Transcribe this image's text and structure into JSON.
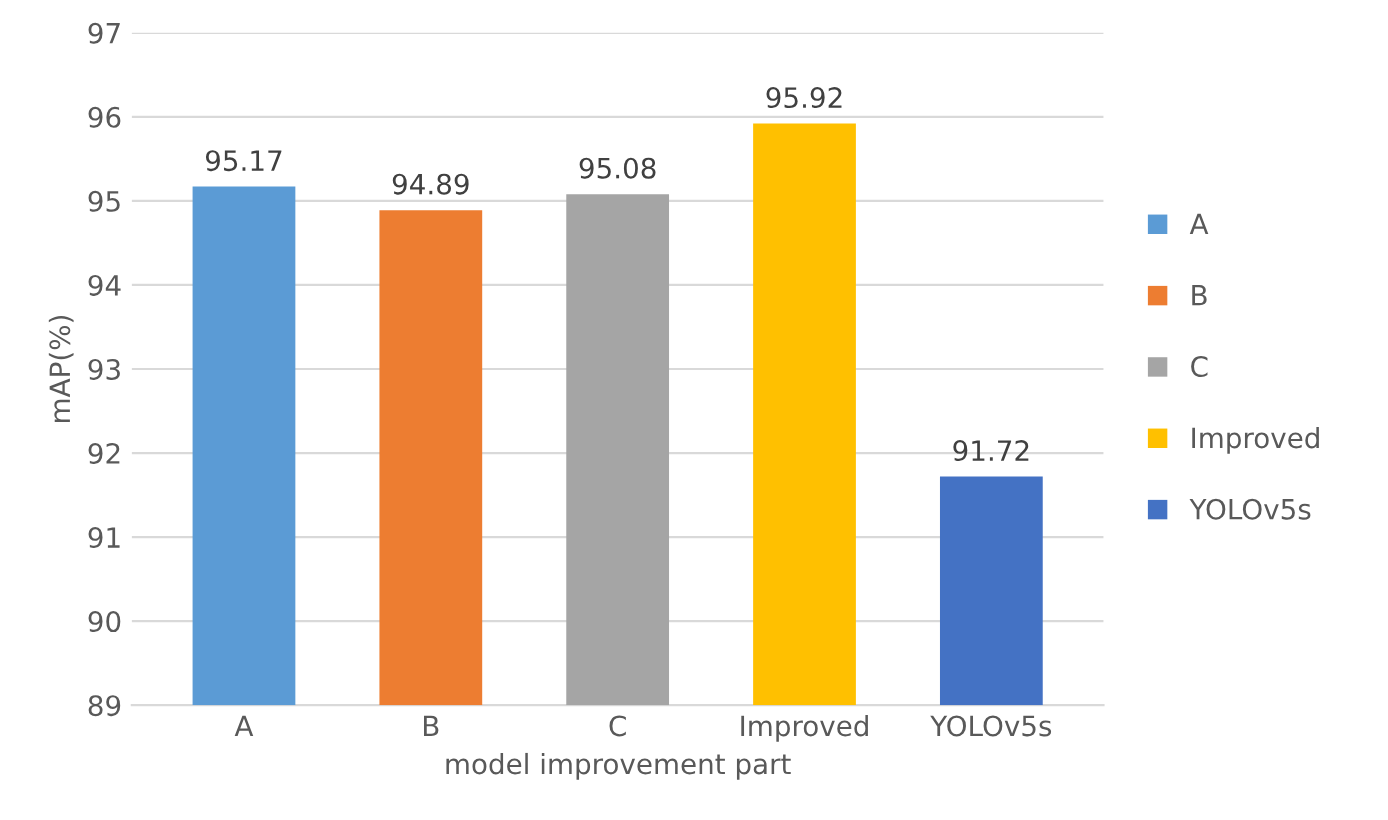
{
  "chart_data": {
    "type": "bar",
    "xlabel": "model improvement part",
    "ylabel": "mAP(%)",
    "categories": [
      "A",
      "B",
      "C",
      "Improved",
      "YOLOv5s"
    ],
    "series": [
      {
        "name": "A",
        "color": "#5b9bd5",
        "values": [
          95.17,
          null,
          null,
          null,
          null
        ]
      },
      {
        "name": "B",
        "color": "#ed7d31",
        "values": [
          null,
          94.89,
          null,
          null,
          null
        ]
      },
      {
        "name": "C",
        "color": "#a5a5a5",
        "values": [
          null,
          null,
          95.08,
          null,
          null
        ]
      },
      {
        "name": "Improved",
        "color": "#ffc000",
        "values": [
          null,
          null,
          null,
          95.92,
          null
        ]
      },
      {
        "name": "YOLOv5s",
        "color": "#4472c4",
        "values": [
          null,
          null,
          null,
          null,
          91.72
        ]
      }
    ],
    "ylim": [
      89,
      97
    ],
    "yticks": [
      89,
      90,
      91,
      92,
      93,
      94,
      95,
      96,
      97
    ],
    "grid": "y",
    "legend": "right",
    "data_labels": true
  }
}
